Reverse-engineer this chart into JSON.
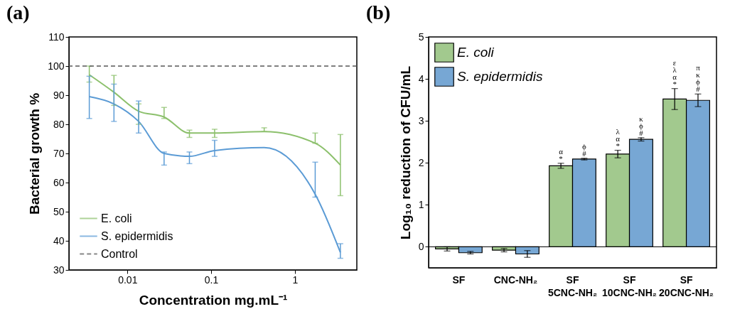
{
  "chart_data": [
    {
      "type": "line",
      "title": "(a)",
      "xlabel": "Concentration mg.mL⁻¹",
      "ylabel": "Bacterial growth %",
      "log": "x",
      "x": [
        0.0035,
        0.0069,
        0.0136,
        0.0274,
        0.055,
        0.11,
        0.43,
        1.75,
        3.5
      ],
      "xlim": [
        0.002,
        5.5
      ],
      "xticks": [
        0.01,
        0.1,
        1
      ],
      "ylim": [
        30,
        110
      ],
      "yticks": [
        30,
        40,
        50,
        60,
        70,
        80,
        90,
        100,
        110
      ],
      "series": [
        {
          "name": "E. coli",
          "color": "#8cc06c",
          "values": [
            97,
            91,
            84.5,
            82.5,
            77,
            77,
            77.5,
            73.5,
            66
          ],
          "errors": [
            [
              94.5,
              100
            ],
            [
              86.5,
              96.8
            ],
            [
              80,
              87
            ],
            [
              82,
              85.8
            ],
            [
              75.5,
              78
            ],
            [
              75.5,
              78.3
            ],
            [
              77.5,
              78.8
            ],
            [
              73.5,
              77
            ],
            [
              55.5,
              76.5
            ]
          ]
        },
        {
          "name": "S. epidermidis",
          "color": "#5b9bd5",
          "values": [
            89.5,
            87,
            81,
            70,
            69,
            71,
            72,
            56,
            36
          ],
          "errors": [
            [
              82,
              96.5
            ],
            [
              81,
              93.8
            ],
            [
              77,
              88
            ],
            [
              66,
              70.5
            ],
            [
              66.5,
              70.5
            ],
            [
              69,
              74.5
            ],
            null,
            [
              55,
              67
            ],
            [
              34,
              39
            ]
          ]
        }
      ],
      "ref_lines": [
        {
          "axis": "y",
          "value": 100,
          "label": "Control",
          "color": "#555555",
          "line_style": "dashed"
        }
      ],
      "legend": "bottom left",
      "grid": false
    },
    {
      "type": "bar",
      "title": "(b)",
      "ylabel": "Log₁₀ reduction of CFU/mL",
      "categories": [
        "SF",
        "CNC-NH₂",
        "SF\n5CNC-NH₂",
        "SF\n10CNC-NH₂",
        "SF\n20CNC-NH₂"
      ],
      "ylim": [
        -0.5,
        5
      ],
      "yticks": [
        0,
        1,
        2,
        3,
        4,
        5
      ],
      "series": [
        {
          "name": "E. coli",
          "color": "#a2c98e",
          "values": [
            -0.05,
            -0.08,
            1.93,
            2.21,
            3.52
          ],
          "errors": [
            0.05,
            0.04,
            0.06,
            0.09,
            0.25
          ]
        },
        {
          "name": "S. epidermidis",
          "color": "#77a7d4",
          "values": [
            -0.14,
            -0.17,
            2.09,
            2.56,
            3.49
          ],
          "errors": [
            0.03,
            0.08,
            0.02,
            0.04,
            0.15
          ]
        }
      ],
      "ref_lines": [
        {
          "axis": "y",
          "value": 0,
          "color": "#000000"
        }
      ],
      "annotations": [
        {
          "text": "α\n*",
          "x": "SF\n5CNC-NH₂",
          "y": 1.93
        },
        {
          "text": "ϕ\n#",
          "x": "SF\n5CNC-NH₂",
          "y": 2.09
        },
        {
          "text": "λ\nα\n*",
          "x": "SF\n10CNC-NH₂",
          "y": 2.21
        },
        {
          "text": "κ\nϕ\n#",
          "x": "SF\n10CNC-NH₂",
          "y": 2.56
        },
        {
          "text": "ε\nλ\nα\n*",
          "x": "SF\n20CNC-NH₂",
          "y": 3.52
        },
        {
          "text": "π\nκ\nϕ\n#",
          "x": "SF\n20CNC-NH₂",
          "y": 3.49
        }
      ],
      "legend": "top left",
      "grid": false
    }
  ]
}
